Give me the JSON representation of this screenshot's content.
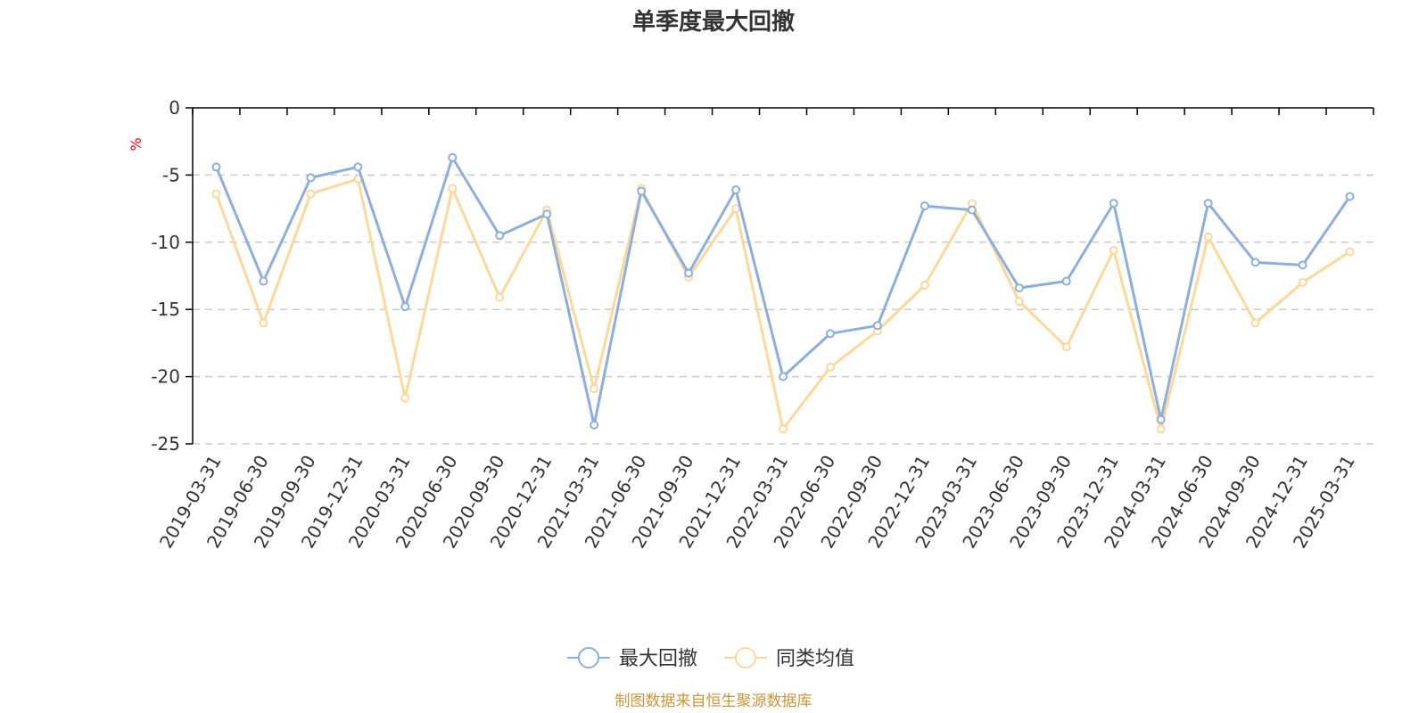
{
  "chart_data": {
    "type": "line",
    "title": "单季度最大回撤",
    "ylabel": "%",
    "xlabel": "",
    "ylim": [
      -25,
      0
    ],
    "yticks": [
      0,
      -5,
      -10,
      -15,
      -20,
      -25
    ],
    "grid": true,
    "legend_position": "bottom",
    "categories": [
      "2019-03-31",
      "2019-06-30",
      "2019-09-30",
      "2019-12-31",
      "2020-03-31",
      "2020-06-30",
      "2020-09-30",
      "2020-12-31",
      "2021-03-31",
      "2021-06-30",
      "2021-09-30",
      "2021-12-31",
      "2022-03-31",
      "2022-06-30",
      "2022-09-30",
      "2022-12-31",
      "2023-03-31",
      "2023-06-30",
      "2023-09-30",
      "2023-12-31",
      "2024-03-31",
      "2024-06-30",
      "2024-09-30",
      "2024-12-31",
      "2025-03-31"
    ],
    "series": [
      {
        "name": "最大回撤",
        "color": "#8eaedb",
        "values": [
          -4.4,
          -12.9,
          -5.2,
          -4.4,
          -14.8,
          -3.7,
          -9.5,
          -7.9,
          -23.6,
          -6.2,
          -12.3,
          -6.1,
          -20.0,
          -16.8,
          -16.2,
          -7.3,
          -7.6,
          -13.4,
          -12.9,
          -7.1,
          -23.2,
          -7.1,
          -11.5,
          -11.7,
          -6.6
        ]
      },
      {
        "name": "同类均值",
        "color": "#fcd89a",
        "values": [
          -6.4,
          -16.0,
          -6.4,
          -5.3,
          -21.6,
          -6.0,
          -14.1,
          -7.6,
          -20.9,
          -6.0,
          -12.6,
          -7.5,
          -23.9,
          -19.3,
          -16.6,
          -13.2,
          -7.1,
          -14.4,
          -17.8,
          -10.6,
          -23.9,
          -9.6,
          -16.0,
          -13.0,
          -10.7
        ]
      }
    ]
  },
  "footer": "制图数据来自恒生聚源数据库"
}
